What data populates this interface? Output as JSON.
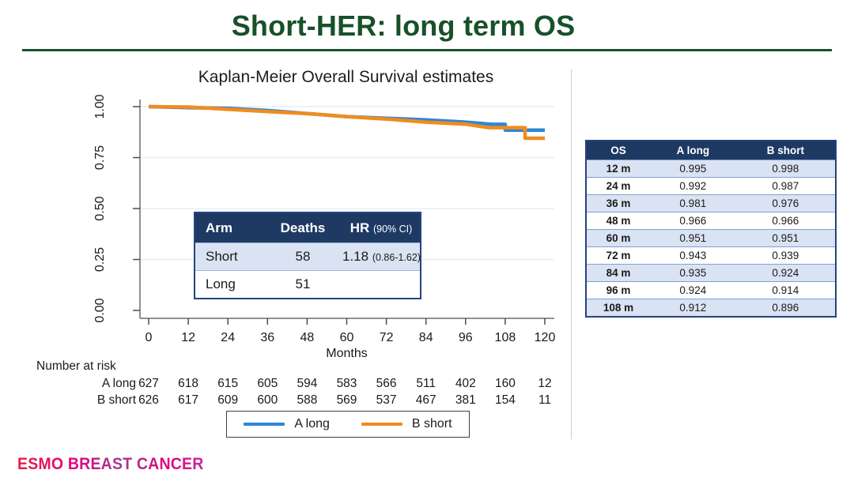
{
  "slide": {
    "title": "Short-HER: long term OS",
    "accent_color": "#17512a"
  },
  "chart_data": {
    "type": "line",
    "subtype": "kaplan-meier-step",
    "title": "Kaplan-Meier Overall Survival estimates",
    "xlabel": "Months",
    "ylabel": "",
    "xlim": [
      0,
      120
    ],
    "ylim": [
      0,
      1
    ],
    "x_ticks": [
      0,
      12,
      24,
      36,
      48,
      60,
      72,
      84,
      96,
      108,
      120
    ],
    "y_ticks": [
      0,
      0.25,
      0.5,
      0.75,
      1.0
    ],
    "y_tick_labels": [
      "0.00",
      "0.25",
      "0.50",
      "0.75",
      "1.00"
    ],
    "grid": "horizontal",
    "legend_position": "bottom",
    "series": [
      {
        "name": "A long",
        "color": "#2e86d9",
        "points": [
          [
            0,
            1.0
          ],
          [
            12,
            0.995
          ],
          [
            24,
            0.992
          ],
          [
            36,
            0.981
          ],
          [
            48,
            0.966
          ],
          [
            60,
            0.951
          ],
          [
            72,
            0.943
          ],
          [
            84,
            0.935
          ],
          [
            96,
            0.924
          ],
          [
            104,
            0.913
          ],
          [
            108,
            0.913
          ],
          [
            108,
            0.885
          ],
          [
            120,
            0.885
          ]
        ]
      },
      {
        "name": "B short",
        "color": "#f08c1e",
        "points": [
          [
            0,
            1.0
          ],
          [
            12,
            0.998
          ],
          [
            24,
            0.987
          ],
          [
            36,
            0.976
          ],
          [
            48,
            0.966
          ],
          [
            60,
            0.951
          ],
          [
            72,
            0.939
          ],
          [
            84,
            0.924
          ],
          [
            96,
            0.914
          ],
          [
            103,
            0.897
          ],
          [
            114,
            0.897
          ],
          [
            114,
            0.845
          ],
          [
            120,
            0.845
          ]
        ]
      }
    ]
  },
  "inset_table": {
    "col_arm": "Arm",
    "col_deaths": "Deaths",
    "col_hr": "HR",
    "col_hr_sub": "(90% CI)",
    "rows": [
      {
        "arm": "Short",
        "deaths": "58",
        "hr": "1.18",
        "hr_sub": "(0.86-1.62)"
      },
      {
        "arm": "Long",
        "deaths": "51",
        "hr": "",
        "hr_sub": ""
      }
    ]
  },
  "risk_table": {
    "title": "Number at risk",
    "rows": [
      {
        "label": "A long",
        "values": [
          627,
          618,
          615,
          605,
          594,
          583,
          566,
          511,
          402,
          160,
          12
        ]
      },
      {
        "label": "B short",
        "values": [
          626,
          617,
          609,
          600,
          588,
          569,
          537,
          467,
          381,
          154,
          11
        ]
      }
    ]
  },
  "legend": {
    "items": [
      {
        "label": "A long",
        "color": "#2e86d9"
      },
      {
        "label": "B short",
        "color": "#f08c1e"
      }
    ]
  },
  "os_table": {
    "headers": [
      "OS",
      "A long",
      "B short"
    ],
    "rows": [
      [
        "12 m",
        "0.995",
        "0.998"
      ],
      [
        "24 m",
        "0.992",
        "0.987"
      ],
      [
        "36 m",
        "0.981",
        "0.976"
      ],
      [
        "48 m",
        "0.966",
        "0.966"
      ],
      [
        "60 m",
        "0.951",
        "0.951"
      ],
      [
        "72 m",
        "0.943",
        "0.939"
      ],
      [
        "84 m",
        "0.935",
        "0.924"
      ],
      [
        "96 m",
        "0.924",
        "0.914"
      ],
      [
        "108 m",
        "0.912",
        "0.896"
      ]
    ]
  },
  "footer": {
    "logo_text": "ESMO BREAST CANCER"
  }
}
